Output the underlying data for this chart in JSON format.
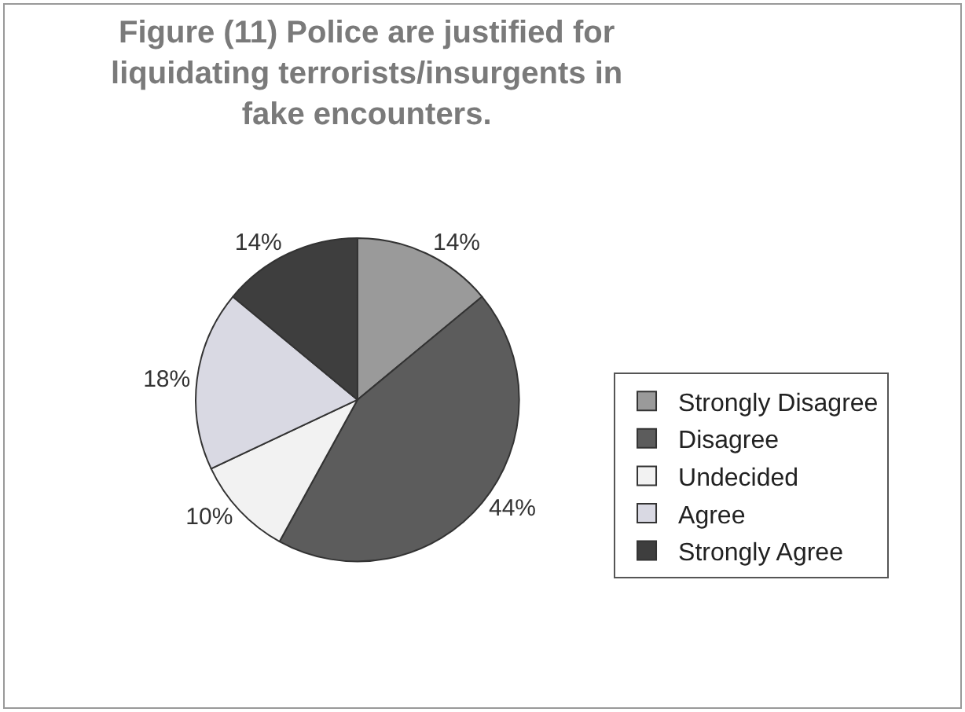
{
  "chart_data": {
    "type": "pie",
    "title": "Figure (11) Police are justified for liquidating terrorists/insurgents in fake encounters.",
    "categories": [
      "Strongly Disagree",
      "Disagree",
      "Undecided",
      "Agree",
      "Strongly Agree"
    ],
    "values": [
      14,
      44,
      10,
      18,
      14
    ],
    "value_labels": [
      "14%",
      "44%",
      "10%",
      "18%",
      "14%"
    ],
    "colors": [
      "#9a9a9a",
      "#5c5c5c",
      "#f2f2f2",
      "#d9d9e3",
      "#3e3e3e"
    ],
    "legend": "right"
  }
}
